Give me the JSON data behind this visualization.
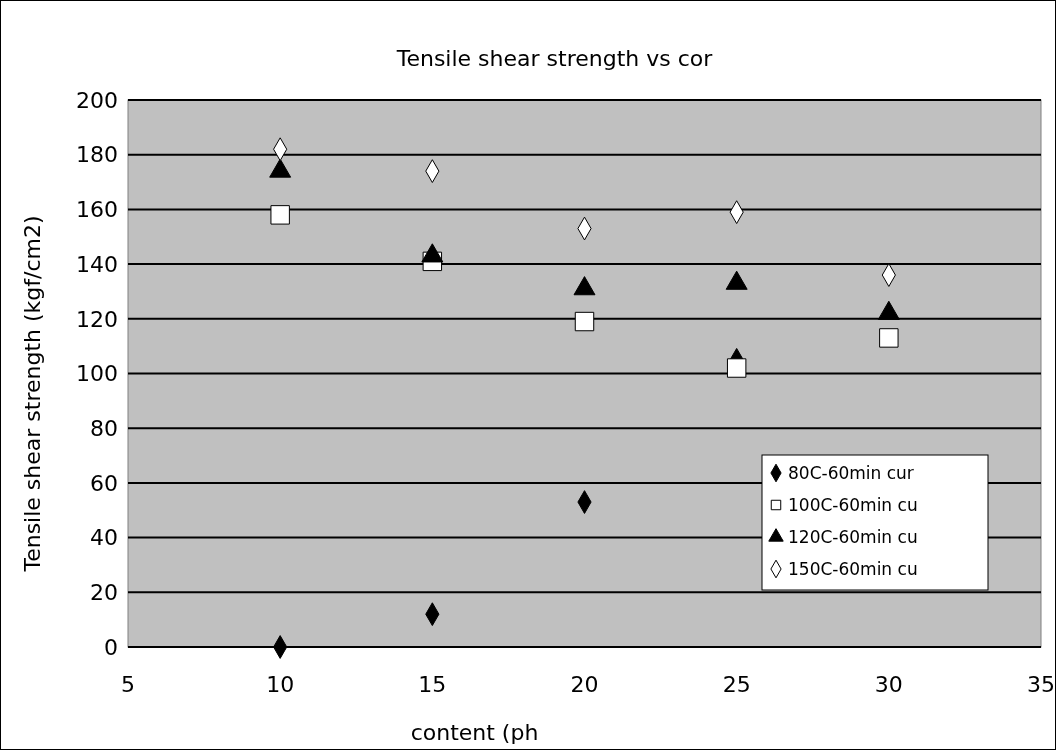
{
  "chart_data": {
    "type": "scatter",
    "title": "Tensile shear strength vs cor",
    "xlabel": "content (ph",
    "ylabel": "Tensile shear strength (kgf/cm2)",
    "x": [
      10,
      15,
      20,
      25,
      30
    ],
    "xlim": [
      5,
      35
    ],
    "xticks": [
      5,
      10,
      15,
      20,
      25,
      30,
      35
    ],
    "ylim": [
      0,
      200
    ],
    "yticks": [
      0,
      20,
      40,
      60,
      80,
      100,
      120,
      140,
      160,
      180,
      200
    ],
    "grid": "y",
    "legend": "bottom right",
    "series": [
      {
        "name": "80C-60min cur",
        "color": "#000000",
        "marker": "diamond",
        "values": [
          0,
          12,
          53,
          105,
          null
        ]
      },
      {
        "name": "100C-60min cu",
        "color": "#ffffff",
        "marker": "square",
        "values": [
          158,
          141,
          119,
          102,
          113
        ]
      },
      {
        "name": "120C-60min cu",
        "color": "#000000",
        "marker": "triangle",
        "values": [
          174,
          143,
          131,
          133,
          122
        ]
      },
      {
        "name": "150C-60min cu",
        "color": "#ffffff",
        "marker": "diamond",
        "values": [
          182,
          174,
          153,
          159,
          136
        ]
      }
    ]
  }
}
